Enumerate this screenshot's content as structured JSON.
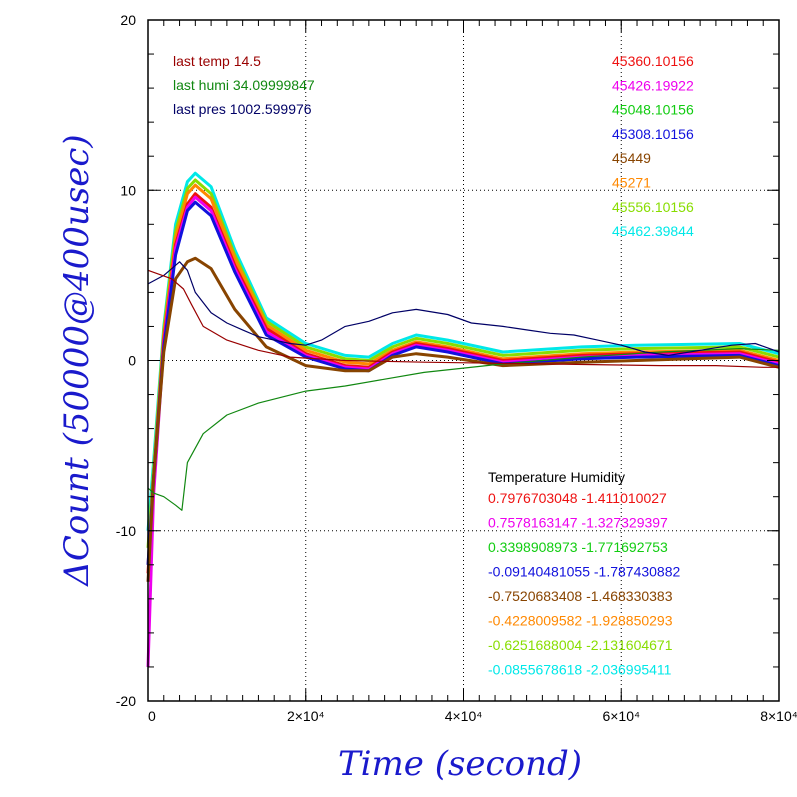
{
  "chart_data": {
    "type": "line",
    "xlabel": "Time (second)",
    "ylabel": "ΔCount (50000@400usec)",
    "xlim": [
      0,
      80000
    ],
    "ylim": [
      -20,
      20
    ],
    "grid": true,
    "x_ticks": [
      {
        "value": 0,
        "label": "0"
      },
      {
        "value": 20000,
        "label": "2×10⁴"
      },
      {
        "value": 40000,
        "label": "4×10⁴"
      },
      {
        "value": 60000,
        "label": "6×10⁴"
      },
      {
        "value": 80000,
        "label": "8×10⁴"
      }
    ],
    "y_ticks": [
      {
        "value": -20,
        "label": "-20"
      },
      {
        "value": -10,
        "label": "-10"
      },
      {
        "value": 0,
        "label": "0"
      },
      {
        "value": 10,
        "label": "10"
      },
      {
        "value": 20,
        "label": "20"
      }
    ],
    "last_values": [
      {
        "text": "last temp 14.5",
        "color": "#990000"
      },
      {
        "text": "last humi 34.09999847",
        "color": "#118811"
      },
      {
        "text": "last pres 1002.599976",
        "color": "#000066"
      }
    ],
    "channel_labels": [
      {
        "text": "45360.10156",
        "color": "#ee1111"
      },
      {
        "text": "45426.19922",
        "color": "#ee00ee"
      },
      {
        "text": "45048.10156",
        "color": "#11cc11"
      },
      {
        "text": "45308.10156",
        "color": "#1111dd"
      },
      {
        "text": "45449",
        "color": "#884400"
      },
      {
        "text": "45271",
        "color": "#ff8800"
      },
      {
        "text": "45556.10156",
        "color": "#88dd00"
      },
      {
        "text": "45462.39844",
        "color": "#00e8e8"
      }
    ],
    "coef_header": "Temperature    Humidity",
    "coefficients": [
      {
        "text": "0.7976703048 -1.411010027",
        "color": "#ee1111"
      },
      {
        "text": "0.7578163147 -1.327329397",
        "color": "#ee00ee"
      },
      {
        "text": "0.3398908973 -1.771692753",
        "color": "#11cc11"
      },
      {
        "text": "-0.09140481055 -1.787430882",
        "color": "#1111dd"
      },
      {
        "text": "-0.7520683408 -1.468330383",
        "color": "#884400"
      },
      {
        "text": "-0.4228009582 -1.928850293",
        "color": "#ff8800"
      },
      {
        "text": "-0.6251688004 -2.131604671",
        "color": "#88dd00"
      },
      {
        "text": "-0.0855678618 -2.036995411",
        "color": "#00e8e8"
      }
    ],
    "series": [
      {
        "color": "#00e8e8",
        "x": [
          0,
          700,
          2000,
          3500,
          5000,
          6000,
          8000,
          11000,
          15000,
          20000,
          25000,
          28000,
          31000,
          34000,
          38000,
          45000,
          55000,
          62000,
          75000,
          80000
        ],
        "y": [
          -10,
          -6,
          2,
          8,
          10.5,
          11,
          10.2,
          6.5,
          2.5,
          1,
          0.3,
          0.2,
          1,
          1.5,
          1.2,
          0.5,
          0.8,
          0.9,
          1,
          0.4
        ]
      },
      {
        "color": "#88dd00",
        "x": [
          0,
          700,
          2000,
          3500,
          5000,
          6000,
          8000,
          11000,
          15000,
          20000,
          25000,
          28000,
          31000,
          34000,
          38000,
          45000,
          55000,
          62000,
          75000,
          80000
        ],
        "y": [
          -11,
          -6.5,
          1.8,
          7.6,
          10.1,
          10.6,
          9.8,
          6.2,
          2.3,
          0.8,
          0.1,
          0,
          0.8,
          1.3,
          1,
          0.3,
          0.6,
          0.7,
          0.8,
          0.2
        ]
      },
      {
        "color": "#ff8800",
        "x": [
          0,
          700,
          2000,
          3500,
          5000,
          6000,
          8000,
          11000,
          15000,
          20000,
          25000,
          28000,
          31000,
          34000,
          38000,
          45000,
          55000,
          62000,
          75000,
          80000
        ],
        "y": [
          -12,
          -7,
          1.5,
          7.2,
          9.8,
          10.3,
          9.5,
          6,
          2.1,
          0.6,
          -0.1,
          -0.2,
          0.6,
          1.1,
          0.8,
          0.1,
          0.4,
          0.5,
          0.6,
          0
        ]
      },
      {
        "color": "#ee1111",
        "x": [
          0,
          700,
          2000,
          3500,
          5000,
          6000,
          8000,
          11000,
          15000,
          20000,
          25000,
          28000,
          31000,
          34000,
          38000,
          45000,
          55000,
          62000,
          75000,
          80000
        ],
        "y": [
          -12.5,
          -7,
          1.2,
          6.8,
          9.2,
          9.8,
          9,
          5.6,
          1.9,
          0.4,
          -0.3,
          -0.4,
          0.5,
          1,
          0.7,
          0,
          0.3,
          0.4,
          0.5,
          -0.1
        ]
      },
      {
        "color": "#ee00ee",
        "x": [
          0,
          700,
          2000,
          3500,
          5000,
          6000,
          8000,
          11000,
          15000,
          20000,
          25000,
          28000,
          31000,
          34000,
          38000,
          45000,
          55000,
          62000,
          75000,
          80000
        ],
        "y": [
          -18,
          -8,
          1,
          6.6,
          9,
          9.6,
          8.8,
          5.4,
          1.7,
          0.3,
          -0.4,
          -0.5,
          0.4,
          0.9,
          0.6,
          -0.1,
          0.2,
          0.3,
          0.4,
          -0.2
        ]
      },
      {
        "color": "#1111dd",
        "x": [
          0,
          700,
          2000,
          3500,
          5000,
          6000,
          8000,
          11000,
          15000,
          20000,
          25000,
          28000,
          31000,
          34000,
          38000,
          45000,
          55000,
          62000,
          75000,
          80000
        ],
        "y": [
          -12,
          -7,
          0.8,
          6.2,
          8.8,
          9.3,
          8.5,
          5.2,
          1.5,
          0.2,
          -0.5,
          -0.6,
          0.3,
          0.8,
          0.5,
          -0.2,
          0.1,
          0.2,
          0.3,
          -0.3
        ]
      },
      {
        "color": "#884400",
        "x": [
          0,
          700,
          2000,
          3500,
          5000,
          6000,
          8000,
          11000,
          15000,
          20000,
          25000,
          28000,
          31000,
          34000,
          38000,
          45000,
          55000,
          62000,
          75000,
          80000
        ],
        "y": [
          -13,
          -7,
          0.5,
          4.8,
          5.8,
          6,
          5.4,
          3,
          0.8,
          -0.3,
          -0.6,
          -0.6,
          0.2,
          0.4,
          0.2,
          -0.3,
          -0.1,
          0,
          0.2,
          -0.4
        ]
      },
      {
        "color": "#118811",
        "x": [
          0,
          800,
          2000,
          3500,
          4300,
          5000,
          7000,
          10000,
          14000,
          20000,
          25000,
          30000,
          35000,
          45000,
          55000,
          65000,
          75000,
          80000
        ],
        "y": [
          -7.5,
          -7.8,
          -8,
          -8.5,
          -8.8,
          -6,
          -4.3,
          -3.2,
          -2.5,
          -1.8,
          -1.5,
          -1.1,
          -0.7,
          -0.2,
          0.2,
          0.5,
          0.7,
          0.6
        ]
      },
      {
        "color": "#000066",
        "x": [
          0,
          2000,
          4000,
          5000,
          6000,
          8000,
          10000,
          12000,
          14000,
          16000,
          18000,
          20000,
          22000,
          25000,
          28000,
          31000,
          34000,
          38000,
          41000,
          45000,
          48000,
          51000,
          54000,
          57000,
          60000,
          63000,
          66000,
          70000,
          74000,
          77000,
          80000
        ],
        "y": [
          4.5,
          5,
          5.8,
          5.3,
          4,
          2.8,
          2.2,
          1.8,
          1.4,
          1.2,
          1,
          0.9,
          1.2,
          2,
          2.3,
          2.8,
          3,
          2.7,
          2.2,
          2,
          1.8,
          1.6,
          1.5,
          1.2,
          0.9,
          0.5,
          0.3,
          0.6,
          0.9,
          1,
          0.5
        ]
      },
      {
        "color": "#990000",
        "x": [
          0,
          3000,
          4500,
          5500,
          7000,
          10000,
          14000,
          18000,
          25000,
          35000,
          50000,
          65000,
          72000,
          78000,
          80000
        ],
        "y": [
          5.3,
          4.8,
          4.2,
          3.3,
          2,
          1.2,
          0.6,
          0.2,
          0,
          -0.1,
          -0.2,
          -0.3,
          -0.3,
          -0.4,
          -0.4
        ]
      }
    ]
  }
}
